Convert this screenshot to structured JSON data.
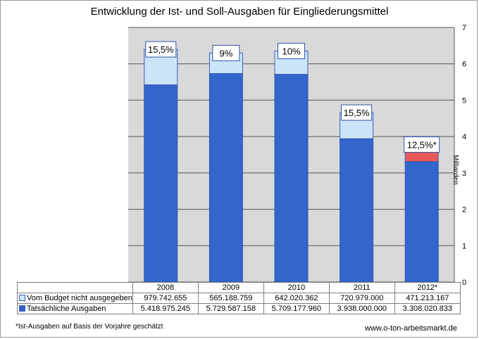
{
  "chart_data": {
    "type": "bar",
    "stacked": true,
    "title": "Entwicklung der Ist- und Soll-Ausgaben für Eingliederungsmittel",
    "ylabel": "Milliarden",
    "ylim": [
      0,
      7
    ],
    "yticks": [
      "0",
      "1",
      "2",
      "3",
      "4",
      "5",
      "6",
      "7"
    ],
    "categories": [
      "2008",
      "2009",
      "2010",
      "2011",
      "2012*"
    ],
    "series": [
      {
        "name": "Tatsächliche Ausgaben",
        "color": "#3366cc",
        "values": [
          5.418975245,
          5.729587158,
          5.70917796,
          3.938,
          3.308020833
        ],
        "labels": [
          "5.418.975.245",
          "5.729.587.158",
          "5.709.177.960",
          "3.938.000.000",
          "3.308.020.833"
        ]
      },
      {
        "name": "Vom Budget nicht ausgegeben",
        "color": "#cce4fa",
        "highlight_color": "#e85858",
        "values": [
          0.979742655,
          0.565188759,
          0.642020362,
          0.720979,
          0.471213167
        ],
        "labels": [
          "979.742.655",
          "565.188.759",
          "642.020.362",
          "720.979.000",
          "471.213.167"
        ]
      }
    ],
    "annotations": [
      "15,5%",
      "9%",
      "10%",
      "15,5%",
      "12,5%*"
    ]
  },
  "footnote": "*Ist-Ausgaben auf Basis der Vorjahre geschätzt",
  "source": "www.o-ton-arbeitsmarkt.de"
}
